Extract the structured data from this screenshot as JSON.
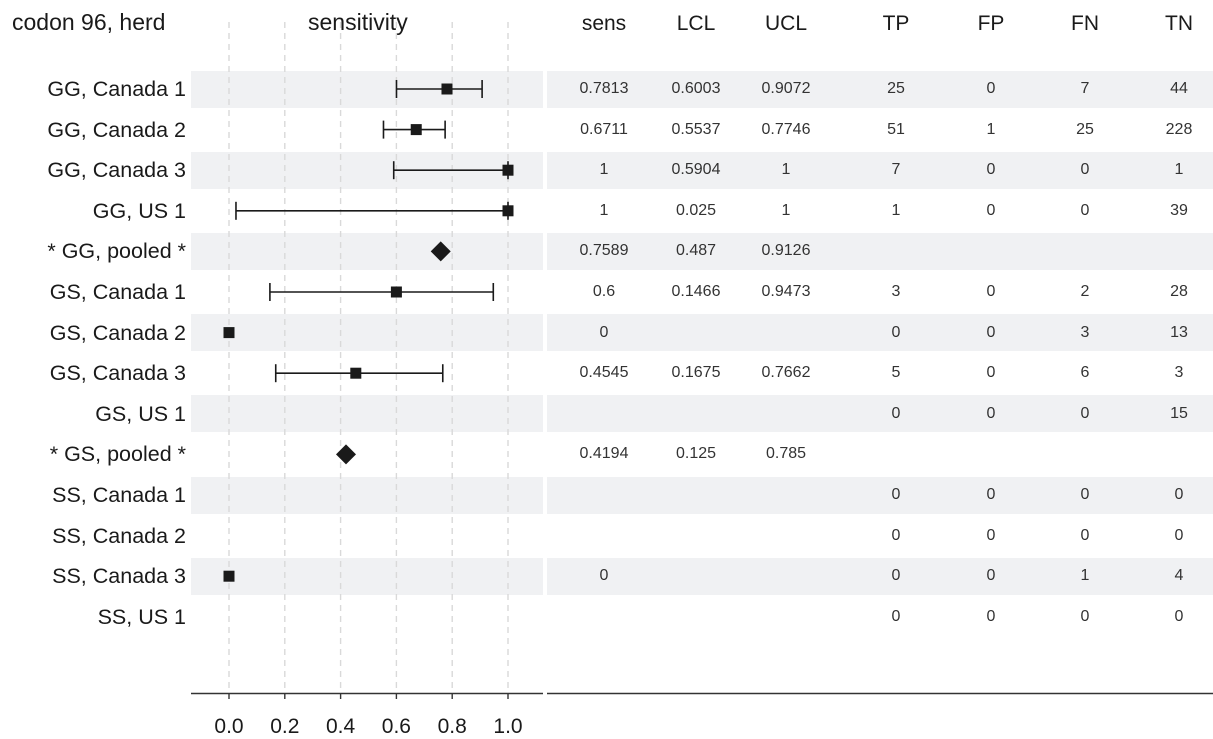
{
  "headers": {
    "row_label": "codon 96, herd",
    "plot": "sensitivity",
    "columns": [
      "sens",
      "LCL",
      "UCL",
      "TP",
      "FP",
      "FN",
      "TN"
    ]
  },
  "chart_data": {
    "type": "forest",
    "xlabel": "sensitivity",
    "xlim": [
      -0.14,
      1.13
    ],
    "xticks": [
      0.0,
      0.2,
      0.4,
      0.6,
      0.8,
      1.0
    ],
    "xtick_labels": [
      "0.0",
      "0.2",
      "0.4",
      "0.6",
      "0.8",
      "1.0"
    ],
    "grid": "vertical dashed",
    "rows": [
      {
        "label": "GG, Canada 1",
        "est": 0.7813,
        "lcl": 0.6003,
        "ucl": 0.9072,
        "marker": "square",
        "shaded": true
      },
      {
        "label": "GG, Canada 2",
        "est": 0.6711,
        "lcl": 0.5537,
        "ucl": 0.7746,
        "marker": "square",
        "shaded": false
      },
      {
        "label": "GG, Canada 3",
        "est": 1,
        "lcl": 0.5904,
        "ucl": 1,
        "marker": "square",
        "shaded": true
      },
      {
        "label": "GG, US 1",
        "est": 1,
        "lcl": 0.025,
        "ucl": 1,
        "marker": "square",
        "shaded": false
      },
      {
        "label": "* GG, pooled *",
        "est": 0.7589,
        "lcl": 0.487,
        "ucl": 0.9126,
        "marker": "diamond",
        "shaded": true
      },
      {
        "label": "GS, Canada 1",
        "est": 0.6,
        "lcl": 0.1466,
        "ucl": 0.9473,
        "marker": "square",
        "shaded": false
      },
      {
        "label": "GS, Canada 2",
        "est": 0,
        "lcl": null,
        "ucl": null,
        "marker": "square",
        "shaded": true
      },
      {
        "label": "GS, Canada 3",
        "est": 0.4545,
        "lcl": 0.1675,
        "ucl": 0.7662,
        "marker": "square",
        "shaded": false
      },
      {
        "label": "GS, US 1",
        "est": null,
        "lcl": null,
        "ucl": null,
        "marker": "square",
        "shaded": true
      },
      {
        "label": "* GS, pooled *",
        "est": 0.4194,
        "lcl": 0.125,
        "ucl": 0.785,
        "marker": "diamond",
        "shaded": false
      },
      {
        "label": "SS, Canada 1",
        "est": null,
        "lcl": null,
        "ucl": null,
        "marker": "square",
        "shaded": true
      },
      {
        "label": "SS, Canada 2",
        "est": null,
        "lcl": null,
        "ucl": null,
        "marker": "square",
        "shaded": false
      },
      {
        "label": "SS, Canada 3",
        "est": 0,
        "lcl": null,
        "ucl": null,
        "marker": "square",
        "shaded": true
      },
      {
        "label": "SS, US 1",
        "est": null,
        "lcl": null,
        "ucl": null,
        "marker": "square",
        "shaded": false
      }
    ],
    "table": [
      [
        "0.7813",
        "0.6003",
        "0.9072",
        "25",
        "0",
        "7",
        "44"
      ],
      [
        "0.6711",
        "0.5537",
        "0.7746",
        "51",
        "1",
        "25",
        "228"
      ],
      [
        "1",
        "0.5904",
        "1",
        "7",
        "0",
        "0",
        "1"
      ],
      [
        "1",
        "0.025",
        "1",
        "1",
        "0",
        "0",
        "39"
      ],
      [
        "0.7589",
        "0.487",
        "0.9126",
        "",
        "",
        "",
        ""
      ],
      [
        "0.6",
        "0.1466",
        "0.9473",
        "3",
        "0",
        "2",
        "28"
      ],
      [
        "0",
        "",
        "",
        "0",
        "0",
        "3",
        "13"
      ],
      [
        "0.4545",
        "0.1675",
        "0.7662",
        "5",
        "0",
        "6",
        "3"
      ],
      [
        "",
        "",
        "",
        "0",
        "0",
        "0",
        "15"
      ],
      [
        "0.4194",
        "0.125",
        "0.785",
        "",
        "",
        "",
        ""
      ],
      [
        "",
        "",
        "",
        "0",
        "0",
        "0",
        "0"
      ],
      [
        "",
        "",
        "",
        "0",
        "0",
        "0",
        "0"
      ],
      [
        "0",
        "",
        "",
        "0",
        "0",
        "1",
        "4"
      ],
      [
        "",
        "",
        "",
        "0",
        "0",
        "0",
        "0"
      ]
    ]
  },
  "colors": {
    "band": "#f0f1f3",
    "marker": "#1a1a1a",
    "grid": "#d9d9d9",
    "axis": "#333333"
  }
}
